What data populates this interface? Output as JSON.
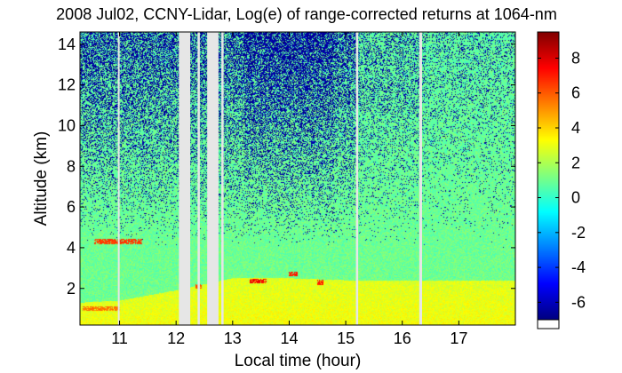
{
  "chart_data": {
    "type": "heatmap",
    "title": "2008 Jul02, CCNY-Lidar, Log(e) of range-corrected returns at 1064-nm",
    "xlabel": "Local time (hour)",
    "ylabel": "Altitude (km)",
    "xlim": [
      10.3,
      18.0
    ],
    "ylim": [
      0.2,
      14.6
    ],
    "x_ticks": [
      {
        "value": 11,
        "label": "11"
      },
      {
        "value": 12,
        "label": "12"
      },
      {
        "value": 13,
        "label": "13"
      },
      {
        "value": 14,
        "label": "14"
      },
      {
        "value": 15,
        "label": "15"
      },
      {
        "value": 16,
        "label": "16"
      },
      {
        "value": 17,
        "label": "17"
      }
    ],
    "y_ticks": [
      {
        "value": 2,
        "label": "2"
      },
      {
        "value": 4,
        "label": "4"
      },
      {
        "value": 6,
        "label": "6"
      },
      {
        "value": 8,
        "label": "8"
      },
      {
        "value": 10,
        "label": "10"
      },
      {
        "value": 12,
        "label": "12"
      },
      {
        "value": 14,
        "label": "14"
      }
    ],
    "colorbar": {
      "colormap": "jet",
      "range": [
        -7,
        9.5
      ],
      "ticks": [
        {
          "value": 8,
          "label": "8"
        },
        {
          "value": 6,
          "label": "6"
        },
        {
          "value": 4,
          "label": "4"
        },
        {
          "value": 2,
          "label": "2"
        },
        {
          "value": 0,
          "label": "0"
        },
        {
          "value": -2,
          "label": "-2"
        },
        {
          "value": -4,
          "label": "-4"
        },
        {
          "value": -6,
          "label": "-6"
        }
      ]
    },
    "data_gaps_hours": [
      [
        10.97,
        11.0
      ],
      [
        12.05,
        12.25
      ],
      [
        12.38,
        12.42
      ],
      [
        12.55,
        12.75
      ],
      [
        12.8,
        12.84
      ],
      [
        15.18,
        15.22
      ],
      [
        16.3,
        16.35
      ]
    ],
    "features": {
      "boundary_layer_top_km": [
        {
          "x": 10.3,
          "y": 1.3
        },
        {
          "x": 11.0,
          "y": 1.4
        },
        {
          "x": 12.0,
          "y": 1.9
        },
        {
          "x": 13.0,
          "y": 2.5
        },
        {
          "x": 14.0,
          "y": 2.5
        },
        {
          "x": 15.0,
          "y": 2.4
        },
        {
          "x": 16.0,
          "y": 2.4
        },
        {
          "x": 17.0,
          "y": 2.4
        },
        {
          "x": 18.0,
          "y": 2.4
        }
      ],
      "cloud_layers": [
        {
          "x_start": 10.55,
          "x_end": 11.4,
          "altitude_km": 4.3,
          "value": 6.5
        },
        {
          "x_start": 10.35,
          "x_end": 11.0,
          "altitude_km": 1.0,
          "value": 5.5
        },
        {
          "x_start": 12.35,
          "x_end": 12.45,
          "altitude_km": 2.1,
          "value": 6.0
        },
        {
          "x_start": 13.3,
          "x_end": 13.6,
          "altitude_km": 2.35,
          "value": 7.5
        },
        {
          "x_start": 14.0,
          "x_end": 14.15,
          "altitude_km": 2.7,
          "value": 7.0
        },
        {
          "x_start": 14.5,
          "x_end": 14.6,
          "altitude_km": 2.3,
          "value": 7.0
        }
      ],
      "free_troposphere_value": 1.0,
      "boundary_layer_value": 3.2,
      "noise_dropout_value": -6.5
    }
  }
}
